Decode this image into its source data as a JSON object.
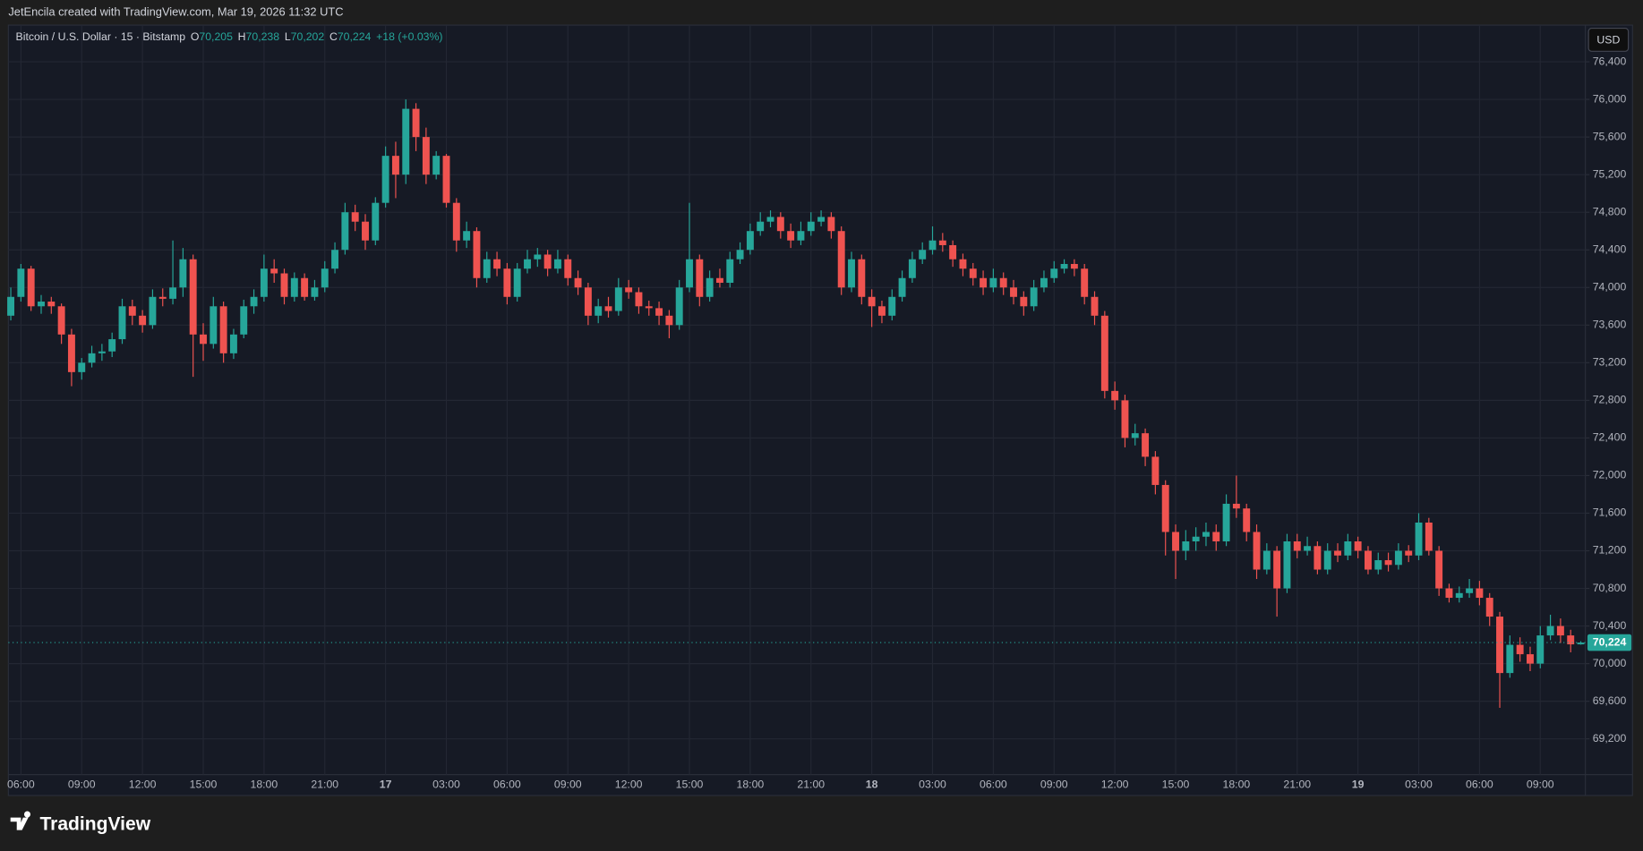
{
  "header": {
    "caption": "JetEncila created with TradingView.com, Mar 19, 2026 11:32 UTC"
  },
  "footer": {
    "brand": "TradingView"
  },
  "chart_data": {
    "type": "candlestick",
    "legend": {
      "symbol": "Bitcoin / U.S. Dollar · 15 · Bitstamp",
      "fields": [
        {
          "label": "O",
          "value": "70,205"
        },
        {
          "label": "H",
          "value": "70,238"
        },
        {
          "label": "L",
          "value": "70,202"
        },
        {
          "label": "C",
          "value": "70,224"
        }
      ],
      "change": "+18 (+0.03%)"
    },
    "currency": "USD",
    "up_color": "#26a69a",
    "down_color": "#ef5350",
    "grid": true,
    "ylim": [
      68820,
      76790
    ],
    "yticks": [
      {
        "value": 69200,
        "label": "69,200"
      },
      {
        "value": 69600,
        "label": "69,600"
      },
      {
        "value": 70000,
        "label": "70,000"
      },
      {
        "value": 70400,
        "label": "70,400"
      },
      {
        "value": 70800,
        "label": "70,800"
      },
      {
        "value": 71200,
        "label": "71,200"
      },
      {
        "value": 71600,
        "label": "71,600"
      },
      {
        "value": 72000,
        "label": "72,000"
      },
      {
        "value": 72400,
        "label": "72,400"
      },
      {
        "value": 72800,
        "label": "72,800"
      },
      {
        "value": 73200,
        "label": "73,200"
      },
      {
        "value": 73600,
        "label": "73,600"
      },
      {
        "value": 74000,
        "label": "74,000"
      },
      {
        "value": 74400,
        "label": "74,400"
      },
      {
        "value": 74800,
        "label": "74,800"
      },
      {
        "value": 75200,
        "label": "75,200"
      },
      {
        "value": 75600,
        "label": "75,600"
      },
      {
        "value": 76000,
        "label": "76,000"
      },
      {
        "value": 76400,
        "label": "76,400"
      }
    ],
    "last_price": {
      "value": 70224,
      "label": "70,224"
    },
    "categories": [
      null,
      "06:00",
      null,
      null,
      null,
      null,
      null,
      "09:00",
      null,
      null,
      null,
      null,
      null,
      "12:00",
      null,
      null,
      null,
      null,
      null,
      "15:00",
      null,
      null,
      null,
      null,
      null,
      "18:00",
      null,
      null,
      null,
      null,
      null,
      "21:00",
      null,
      null,
      null,
      null,
      null,
      "17",
      null,
      null,
      null,
      null,
      null,
      "03:00",
      null,
      null,
      null,
      null,
      null,
      "06:00",
      null,
      null,
      null,
      null,
      null,
      "09:00",
      null,
      null,
      null,
      null,
      null,
      "12:00",
      null,
      null,
      null,
      null,
      null,
      "15:00",
      null,
      null,
      null,
      null,
      null,
      "18:00",
      null,
      null,
      null,
      null,
      null,
      "21:00",
      null,
      null,
      null,
      null,
      null,
      "18",
      null,
      null,
      null,
      null,
      null,
      "03:00",
      null,
      null,
      null,
      null,
      null,
      "06:00",
      null,
      null,
      null,
      null,
      null,
      "09:00",
      null,
      null,
      null,
      null,
      null,
      "12:00",
      null,
      null,
      null,
      null,
      null,
      "15:00",
      null,
      null,
      null,
      null,
      null,
      "18:00",
      null,
      null,
      null,
      null,
      null,
      "21:00",
      null,
      null,
      null,
      null,
      null,
      "19",
      null,
      null,
      null,
      null,
      null,
      "03:00",
      null,
      null,
      null,
      null,
      null,
      "06:00",
      null,
      null,
      null,
      null,
      null,
      "09:00",
      null,
      null,
      null,
      null
    ],
    "candles": [
      [
        73700,
        74000,
        73650,
        73900
      ],
      [
        73900,
        74250,
        73850,
        74200
      ],
      [
        74200,
        74230,
        73750,
        73800
      ],
      [
        73800,
        73920,
        73720,
        73850
      ],
      [
        73850,
        73900,
        73720,
        73800
      ],
      [
        73800,
        73830,
        73400,
        73500
      ],
      [
        73500,
        73560,
        72950,
        73100
      ],
      [
        73100,
        73250,
        73020,
        73200
      ],
      [
        73200,
        73380,
        73150,
        73300
      ],
      [
        73300,
        73400,
        73220,
        73320
      ],
      [
        73320,
        73520,
        73260,
        73450
      ],
      [
        73450,
        73880,
        73400,
        73800
      ],
      [
        73800,
        73870,
        73600,
        73700
      ],
      [
        73700,
        73760,
        73520,
        73600
      ],
      [
        73600,
        73980,
        73560,
        73900
      ],
      [
        73900,
        73990,
        73800,
        73880
      ],
      [
        73880,
        74500,
        73820,
        74000
      ],
      [
        74000,
        74420,
        73900,
        74300
      ],
      [
        74300,
        74350,
        73050,
        73500
      ],
      [
        73500,
        73620,
        73220,
        73400
      ],
      [
        73400,
        73900,
        73350,
        73800
      ],
      [
        73800,
        73850,
        73200,
        73300
      ],
      [
        73300,
        73560,
        73240,
        73500
      ],
      [
        73500,
        73870,
        73460,
        73800
      ],
      [
        73800,
        73980,
        73720,
        73900
      ],
      [
        73900,
        74350,
        73850,
        74200
      ],
      [
        74200,
        74300,
        74050,
        74150
      ],
      [
        74150,
        74200,
        73820,
        73900
      ],
      [
        73900,
        74160,
        73850,
        74100
      ],
      [
        74100,
        74150,
        73860,
        73900
      ],
      [
        73900,
        74080,
        73860,
        74000
      ],
      [
        74000,
        74280,
        73950,
        74200
      ],
      [
        74200,
        74480,
        74150,
        74400
      ],
      [
        74400,
        74900,
        74350,
        74800
      ],
      [
        74800,
        74880,
        74600,
        74700
      ],
      [
        74700,
        74780,
        74400,
        74500
      ],
      [
        74500,
        74960,
        74450,
        74900
      ],
      [
        74900,
        75500,
        74850,
        75400
      ],
      [
        75400,
        75550,
        74950,
        75200
      ],
      [
        75200,
        76000,
        75100,
        75900
      ],
      [
        75900,
        75960,
        75450,
        75600
      ],
      [
        75600,
        75700,
        75100,
        75200
      ],
      [
        75200,
        75450,
        75150,
        75400
      ],
      [
        75400,
        75420,
        74850,
        74900
      ],
      [
        74900,
        74950,
        74380,
        74500
      ],
      [
        74500,
        74700,
        74420,
        74600
      ],
      [
        74600,
        74640,
        74000,
        74100
      ],
      [
        74100,
        74380,
        74050,
        74300
      ],
      [
        74300,
        74380,
        74120,
        74200
      ],
      [
        74200,
        74260,
        73820,
        73900
      ],
      [
        73900,
        74260,
        73850,
        74200
      ],
      [
        74200,
        74400,
        74150,
        74300
      ],
      [
        74300,
        74420,
        74220,
        74350
      ],
      [
        74350,
        74400,
        74120,
        74200
      ],
      [
        74200,
        74400,
        74150,
        74300
      ],
      [
        74300,
        74350,
        74020,
        74100
      ],
      [
        74100,
        74180,
        73920,
        74000
      ],
      [
        74000,
        74050,
        73600,
        73700
      ],
      [
        73700,
        73880,
        73620,
        73800
      ],
      [
        73800,
        73900,
        73680,
        73750
      ],
      [
        73750,
        74100,
        73700,
        74000
      ],
      [
        74000,
        74080,
        73880,
        73950
      ],
      [
        73950,
        74000,
        73720,
        73800
      ],
      [
        73800,
        73860,
        73700,
        73780
      ],
      [
        73780,
        73850,
        73600,
        73700
      ],
      [
        73700,
        73760,
        73460,
        73600
      ],
      [
        73600,
        74080,
        73550,
        74000
      ],
      [
        74000,
        74900,
        73950,
        74300
      ],
      [
        74300,
        74350,
        73800,
        73900
      ],
      [
        73900,
        74180,
        73850,
        74100
      ],
      [
        74100,
        74200,
        74000,
        74050
      ],
      [
        74050,
        74380,
        74000,
        74300
      ],
      [
        74300,
        74480,
        74250,
        74400
      ],
      [
        74400,
        74680,
        74350,
        74600
      ],
      [
        74600,
        74800,
        74550,
        74700
      ],
      [
        74700,
        74820,
        74640,
        74750
      ],
      [
        74750,
        74800,
        74520,
        74600
      ],
      [
        74600,
        74680,
        74420,
        74500
      ],
      [
        74500,
        74700,
        74450,
        74600
      ],
      [
        74600,
        74800,
        74550,
        74700
      ],
      [
        74700,
        74820,
        74650,
        74750
      ],
      [
        74750,
        74800,
        74520,
        74600
      ],
      [
        74600,
        74650,
        73920,
        74000
      ],
      [
        74000,
        74380,
        73950,
        74300
      ],
      [
        74300,
        74350,
        73820,
        73900
      ],
      [
        73900,
        73980,
        73580,
        73800
      ],
      [
        73800,
        73860,
        73620,
        73700
      ],
      [
        73700,
        73980,
        73650,
        73900
      ],
      [
        73900,
        74180,
        73850,
        74100
      ],
      [
        74100,
        74380,
        74050,
        74300
      ],
      [
        74300,
        74480,
        74250,
        74400
      ],
      [
        74400,
        74650,
        74350,
        74500
      ],
      [
        74500,
        74580,
        74380,
        74450
      ],
      [
        74450,
        74500,
        74220,
        74300
      ],
      [
        74300,
        74360,
        74120,
        74200
      ],
      [
        74200,
        74260,
        74020,
        74100
      ],
      [
        74100,
        74180,
        73920,
        74000
      ],
      [
        74000,
        74200,
        73950,
        74100
      ],
      [
        74100,
        74160,
        73920,
        74000
      ],
      [
        74000,
        74080,
        73820,
        73900
      ],
      [
        73900,
        73960,
        73700,
        73800
      ],
      [
        73800,
        74080,
        73750,
        74000
      ],
      [
        74000,
        74180,
        73950,
        74100
      ],
      [
        74100,
        74280,
        74050,
        74200
      ],
      [
        74200,
        74300,
        74150,
        74250
      ],
      [
        74250,
        74300,
        74120,
        74200
      ],
      [
        74200,
        74250,
        73820,
        73900
      ],
      [
        73900,
        73960,
        73600,
        73700
      ],
      [
        73700,
        73750,
        72820,
        72900
      ],
      [
        72900,
        73000,
        72700,
        72800
      ],
      [
        72800,
        72860,
        72300,
        72400
      ],
      [
        72400,
        72550,
        72320,
        72450
      ],
      [
        72450,
        72500,
        72100,
        72200
      ],
      [
        72200,
        72260,
        71800,
        71900
      ],
      [
        71900,
        71950,
        71150,
        71400
      ],
      [
        71400,
        71480,
        70900,
        71200
      ],
      [
        71200,
        71420,
        71100,
        71300
      ],
      [
        71300,
        71450,
        71200,
        71350
      ],
      [
        71350,
        71500,
        71250,
        71400
      ],
      [
        71400,
        71480,
        71200,
        71300
      ],
      [
        71300,
        71800,
        71250,
        71700
      ],
      [
        71700,
        72000,
        71550,
        71650
      ],
      [
        71650,
        71700,
        71300,
        71400
      ],
      [
        71400,
        71480,
        70900,
        71000
      ],
      [
        71000,
        71280,
        70950,
        71200
      ],
      [
        71200,
        71250,
        70500,
        70800
      ],
      [
        70800,
        71380,
        70750,
        71300
      ],
      [
        71300,
        71380,
        71120,
        71200
      ],
      [
        71200,
        71350,
        71150,
        71250
      ],
      [
        71250,
        71300,
        70950,
        71000
      ],
      [
        71000,
        71280,
        70950,
        71200
      ],
      [
        71200,
        71280,
        71080,
        71150
      ],
      [
        71150,
        71380,
        71100,
        71300
      ],
      [
        71300,
        71350,
        71120,
        71200
      ],
      [
        71200,
        71250,
        70950,
        71000
      ],
      [
        71000,
        71180,
        70950,
        71100
      ],
      [
        71100,
        71180,
        70980,
        71050
      ],
      [
        71050,
        71280,
        71000,
        71200
      ],
      [
        71200,
        71260,
        71080,
        71150
      ],
      [
        71150,
        71600,
        71100,
        71500
      ],
      [
        71500,
        71550,
        71150,
        71200
      ],
      [
        71200,
        71250,
        70720,
        70800
      ],
      [
        70800,
        70850,
        70650,
        70700
      ],
      [
        70700,
        70820,
        70650,
        70750
      ],
      [
        70750,
        70900,
        70700,
        70800
      ],
      [
        70800,
        70880,
        70620,
        70700
      ],
      [
        70700,
        70750,
        70400,
        70500
      ],
      [
        70500,
        70550,
        69530,
        69900
      ],
      [
        69900,
        70300,
        69850,
        70200
      ],
      [
        70200,
        70280,
        70020,
        70100
      ],
      [
        70100,
        70180,
        69920,
        70000
      ],
      [
        70000,
        70400,
        69950,
        70300
      ],
      [
        70300,
        70520,
        70250,
        70400
      ],
      [
        70400,
        70480,
        70220,
        70300
      ],
      [
        70300,
        70360,
        70120,
        70205
      ],
      [
        70205,
        70238,
        70202,
        70224
      ]
    ]
  }
}
